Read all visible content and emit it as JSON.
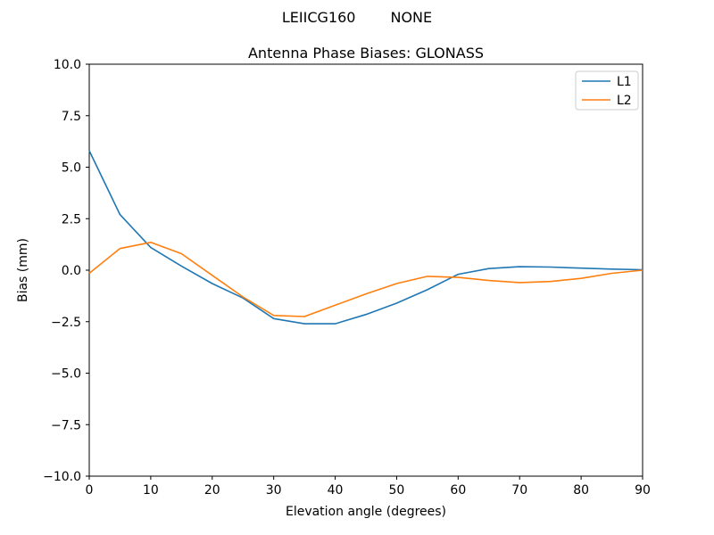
{
  "suptitle": {
    "left": "LEIICG160",
    "right": "NONE"
  },
  "colors": {
    "background": "#ffffff",
    "axis": "#000000",
    "legend_border": "#cccccc",
    "series_l1": "#1f77b4",
    "series_l2": "#ff7f0e"
  },
  "chart_data": {
    "type": "line",
    "title": "Antenna Phase Biases: GLONASS",
    "xlabel": "Elevation angle (degrees)",
    "ylabel": "Bias (mm)",
    "xlim": [
      0,
      90
    ],
    "ylim": [
      -10,
      10
    ],
    "grid": false,
    "x_ticks": [
      0,
      10,
      20,
      30,
      40,
      50,
      60,
      70,
      80,
      90
    ],
    "x_tick_labels": [
      "0",
      "10",
      "20",
      "30",
      "40",
      "50",
      "60",
      "70",
      "80",
      "90"
    ],
    "y_ticks": [
      10.0,
      7.5,
      5.0,
      2.5,
      0.0,
      -2.5,
      -5.0,
      -7.5,
      -10.0
    ],
    "y_tick_labels": [
      "10.0",
      "7.5",
      "5.0",
      "2.5",
      "0.0",
      "−2.5",
      "−5.0",
      "−7.5",
      "−10.0"
    ],
    "legend": {
      "position": "upper right",
      "entries": [
        "L1",
        "L2"
      ]
    },
    "x": [
      0,
      5,
      10,
      15,
      20,
      25,
      30,
      35,
      40,
      45,
      50,
      55,
      60,
      65,
      70,
      75,
      80,
      85,
      90
    ],
    "series": [
      {
        "name": "L1",
        "color": "#1f77b4",
        "values": [
          5.8,
          2.7,
          1.1,
          0.2,
          -0.65,
          -1.35,
          -2.35,
          -2.6,
          -2.6,
          -2.15,
          -1.6,
          -0.95,
          -0.2,
          0.08,
          0.17,
          0.15,
          0.1,
          0.05,
          0.02
        ]
      },
      {
        "name": "L2",
        "color": "#ff7f0e",
        "values": [
          -0.15,
          1.05,
          1.35,
          0.8,
          -0.25,
          -1.3,
          -2.2,
          -2.25,
          -1.7,
          -1.15,
          -0.65,
          -0.3,
          -0.35,
          -0.5,
          -0.6,
          -0.55,
          -0.4,
          -0.15,
          0.0
        ]
      }
    ]
  }
}
